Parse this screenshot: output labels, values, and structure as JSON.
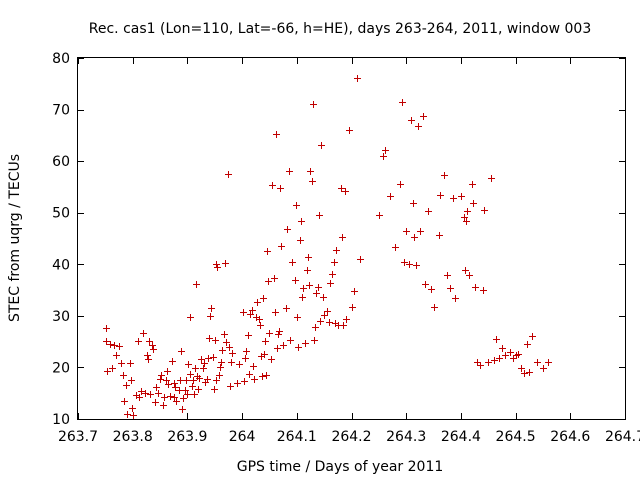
{
  "chart_data": {
    "type": "scatter",
    "title": "Rec. cas1 (Lon=110, Lat=-66, h=HE), days 263-264, 2011, window 003",
    "xlabel": "GPS time / Days of year 2011",
    "ylabel": "STEC from uqrg / TECUs",
    "xlim": [
      263.7,
      264.7
    ],
    "ylim": [
      10,
      80
    ],
    "xticks": [
      263.7,
      263.8,
      263.9,
      264,
      264.1,
      264.2,
      264.3,
      264.4,
      264.5,
      264.6,
      264.7
    ],
    "xtick_labels": [
      "263.7",
      "263.8",
      "263.9",
      "264",
      "264.1",
      "264.2",
      "264.3",
      "264.4",
      "264.5",
      "264.6",
      "264.7"
    ],
    "yticks": [
      10,
      20,
      30,
      40,
      50,
      60,
      70,
      80
    ],
    "ytick_labels": [
      "10",
      "20",
      "30",
      "40",
      "50",
      "60",
      "70",
      "80"
    ],
    "grid": false,
    "marker": "plus",
    "color": "#c00000",
    "series": [
      {
        "points": [
          [
            263.751,
            27.6
          ],
          [
            263.752,
            25.2
          ],
          [
            263.753,
            19.4
          ],
          [
            263.759,
            24.6
          ],
          [
            263.763,
            19.8
          ],
          [
            263.766,
            24.4
          ],
          [
            263.769,
            22.4
          ],
          [
            263.775,
            24.2
          ],
          [
            263.778,
            20.9
          ],
          [
            263.782,
            18.5
          ],
          [
            263.785,
            13.5
          ],
          [
            263.788,
            16.5
          ],
          [
            263.79,
            11.0
          ],
          [
            263.795,
            20.8
          ],
          [
            263.797,
            17.6
          ],
          [
            263.798,
            12.2
          ],
          [
            263.8,
            10.8
          ],
          [
            263.806,
            14.6
          ],
          [
            263.81,
            25.2
          ],
          [
            263.812,
            14.2
          ],
          [
            263.815,
            15.4
          ],
          [
            263.818,
            26.7
          ],
          [
            263.822,
            15.0
          ],
          [
            263.826,
            22.5
          ],
          [
            263.828,
            21.6
          ],
          [
            263.83,
            25.2
          ],
          [
            263.832,
            14.8
          ],
          [
            263.836,
            24.4
          ],
          [
            263.838,
            23.5
          ],
          [
            263.84,
            13.2
          ],
          [
            263.842,
            16.2
          ],
          [
            263.846,
            15.0
          ],
          [
            263.85,
            17.8
          ],
          [
            263.852,
            18.6
          ],
          [
            263.855,
            12.8
          ],
          [
            263.858,
            14.2
          ],
          [
            263.86,
            17.6
          ],
          [
            263.862,
            19.4
          ],
          [
            263.865,
            16.8
          ],
          [
            263.868,
            14.5
          ],
          [
            263.872,
            21.2
          ],
          [
            263.875,
            17.0
          ],
          [
            263.876,
            14.2
          ],
          [
            263.878,
            16.2
          ],
          [
            263.88,
            13.4
          ],
          [
            263.885,
            15.6
          ],
          [
            263.886,
            17.6
          ],
          [
            263.888,
            23.2
          ],
          [
            263.89,
            12.0
          ],
          [
            263.892,
            14.0
          ],
          [
            263.895,
            15.6
          ],
          [
            263.897,
            17.6
          ],
          [
            263.9,
            14.8
          ],
          [
            263.902,
            20.6
          ],
          [
            263.904,
            18.8
          ],
          [
            263.905,
            29.8
          ],
          [
            263.908,
            16.4
          ],
          [
            263.91,
            17.5
          ],
          [
            263.912,
            14.8
          ],
          [
            263.914,
            19.8
          ],
          [
            263.916,
            36.2
          ],
          [
            263.918,
            18.4
          ],
          [
            263.92,
            15.8
          ],
          [
            263.922,
            18.0
          ],
          [
            263.925,
            21.6
          ],
          [
            263.928,
            19.8
          ],
          [
            263.93,
            20.8
          ],
          [
            263.932,
            17.2
          ],
          [
            263.935,
            17.8
          ],
          [
            263.938,
            21.8
          ],
          [
            263.94,
            25.8
          ],
          [
            263.942,
            30.0
          ],
          [
            263.944,
            31.5
          ],
          [
            263.946,
            22.0
          ],
          [
            263.948,
            15.8
          ],
          [
            263.95,
            25.4
          ],
          [
            263.952,
            17.6
          ],
          [
            263.953,
            40.0
          ],
          [
            263.955,
            39.4
          ],
          [
            263.958,
            18.6
          ],
          [
            263.96,
            20.0
          ],
          [
            263.962,
            21.0
          ],
          [
            263.964,
            23.4
          ],
          [
            263.966,
            26.4
          ],
          [
            263.968,
            40.2
          ],
          [
            263.97,
            25.0
          ],
          [
            263.974,
            57.6
          ],
          [
            263.976,
            24.0
          ],
          [
            263.978,
            16.4
          ],
          [
            263.98,
            21.0
          ],
          [
            263.982,
            22.8
          ],
          [
            263.99,
            17.0
          ],
          [
            263.995,
            20.6
          ],
          [
            264.002,
            30.8
          ],
          [
            264.004,
            17.4
          ],
          [
            264.006,
            21.8
          ],
          [
            264.008,
            23.2
          ],
          [
            264.01,
            26.2
          ],
          [
            264.012,
            18.8
          ],
          [
            264.015,
            30.4
          ],
          [
            264.018,
            31.2
          ],
          [
            264.02,
            20.2
          ],
          [
            264.022,
            17.8
          ],
          [
            264.025,
            29.8
          ],
          [
            264.028,
            32.6
          ],
          [
            264.03,
            29.4
          ],
          [
            264.032,
            28.2
          ],
          [
            264.034,
            22.2
          ],
          [
            264.036,
            18.4
          ],
          [
            264.038,
            33.4
          ],
          [
            264.04,
            22.6
          ],
          [
            264.042,
            25.2
          ],
          [
            264.044,
            18.6
          ],
          [
            264.046,
            42.6
          ],
          [
            264.048,
            36.8
          ],
          [
            264.05,
            26.6
          ],
          [
            264.052,
            21.6
          ],
          [
            264.055,
            55.4
          ],
          [
            264.058,
            37.4
          ],
          [
            264.06,
            30.8
          ],
          [
            264.062,
            65.2
          ],
          [
            264.064,
            23.8
          ],
          [
            264.066,
            26.4
          ],
          [
            264.068,
            27.0
          ],
          [
            264.07,
            54.8
          ],
          [
            264.072,
            43.6
          ],
          [
            264.075,
            24.4
          ],
          [
            264.08,
            31.6
          ],
          [
            264.082,
            46.8
          ],
          [
            264.085,
            58.0
          ],
          [
            264.088,
            25.4
          ],
          [
            264.092,
            40.4
          ],
          [
            264.096,
            37.0
          ],
          [
            264.098,
            51.4
          ],
          [
            264.1,
            29.8
          ],
          [
            264.102,
            24.0
          ],
          [
            264.105,
            44.8
          ],
          [
            264.108,
            48.4
          ],
          [
            264.11,
            33.6
          ],
          [
            264.112,
            35.4
          ],
          [
            264.115,
            24.8
          ],
          [
            264.118,
            38.8
          ],
          [
            264.12,
            41.4
          ],
          [
            264.122,
            36.0
          ],
          [
            264.125,
            58.0
          ],
          [
            264.128,
            56.2
          ],
          [
            264.13,
            71.0
          ],
          [
            264.132,
            25.4
          ],
          [
            264.134,
            27.8
          ],
          [
            264.136,
            34.4
          ],
          [
            264.138,
            35.6
          ],
          [
            264.14,
            49.6
          ],
          [
            264.142,
            29.0
          ],
          [
            264.145,
            63.2
          ],
          [
            264.148,
            33.6
          ],
          [
            264.15,
            30.2
          ],
          [
            264.155,
            31.0
          ],
          [
            264.158,
            28.8
          ],
          [
            264.16,
            36.4
          ],
          [
            264.165,
            38.2
          ],
          [
            264.168,
            40.4
          ],
          [
            264.17,
            28.6
          ],
          [
            264.172,
            42.8
          ],
          [
            264.175,
            28.2
          ],
          [
            264.18,
            54.8
          ],
          [
            264.182,
            45.2
          ],
          [
            264.185,
            28.2
          ],
          [
            264.188,
            54.2
          ],
          [
            264.19,
            29.4
          ],
          [
            264.195,
            66.0
          ],
          [
            264.2,
            31.8
          ],
          [
            264.205,
            34.8
          ],
          [
            264.21,
            76.2
          ],
          [
            264.215,
            41.0
          ],
          [
            264.25,
            49.6
          ],
          [
            264.258,
            61.0
          ],
          [
            264.262,
            62.2
          ],
          [
            264.27,
            53.2
          ],
          [
            264.28,
            43.4
          ],
          [
            264.288,
            55.6
          ],
          [
            264.292,
            71.4
          ],
          [
            264.296,
            40.4
          ],
          [
            264.3,
            46.4
          ],
          [
            264.305,
            40.0
          ],
          [
            264.308,
            68.0
          ],
          [
            264.312,
            51.8
          ],
          [
            264.315,
            45.2
          ],
          [
            264.318,
            39.8
          ],
          [
            264.322,
            66.8
          ],
          [
            264.326,
            46.4
          ],
          [
            264.33,
            68.8
          ],
          [
            264.334,
            36.2
          ],
          [
            264.34,
            50.4
          ],
          [
            264.345,
            35.2
          ],
          [
            264.35,
            31.8
          ],
          [
            264.36,
            45.6
          ],
          [
            264.362,
            53.4
          ],
          [
            264.37,
            57.4
          ],
          [
            264.375,
            38.0
          ],
          [
            264.38,
            35.4
          ],
          [
            264.385,
            52.8
          ],
          [
            264.39,
            33.4
          ],
          [
            264.4,
            53.2
          ],
          [
            264.405,
            49.2
          ],
          [
            264.408,
            38.8
          ],
          [
            264.41,
            48.4
          ],
          [
            264.412,
            50.4
          ],
          [
            264.415,
            38.0
          ],
          [
            264.42,
            55.6
          ],
          [
            264.422,
            51.8
          ],
          [
            264.425,
            35.6
          ],
          [
            264.43,
            21.0
          ],
          [
            264.435,
            20.4
          ],
          [
            264.44,
            35.0
          ],
          [
            264.442,
            50.6
          ],
          [
            264.45,
            21.0
          ],
          [
            264.455,
            56.8
          ],
          [
            264.46,
            21.4
          ],
          [
            264.465,
            25.6
          ],
          [
            264.47,
            21.8
          ],
          [
            264.475,
            23.8
          ],
          [
            264.48,
            22.4
          ],
          [
            264.49,
            23.0
          ],
          [
            264.495,
            21.8
          ],
          [
            264.5,
            22.4
          ],
          [
            264.505,
            22.6
          ],
          [
            264.51,
            19.8
          ],
          [
            264.515,
            19.0
          ],
          [
            264.52,
            24.6
          ],
          [
            264.525,
            19.2
          ],
          [
            264.53,
            26.0
          ],
          [
            264.54,
            21.0
          ],
          [
            264.55,
            19.8
          ],
          [
            264.56,
            21.0
          ]
        ]
      }
    ]
  }
}
